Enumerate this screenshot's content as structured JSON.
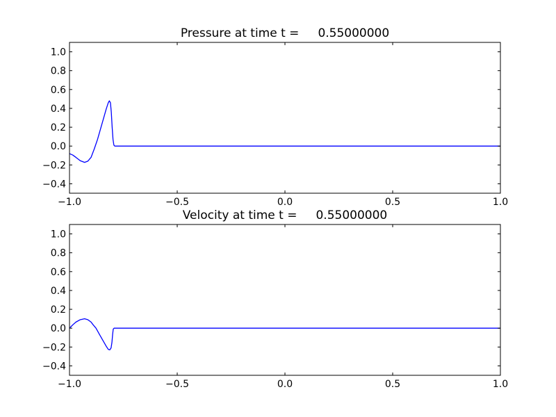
{
  "chart_data": [
    {
      "type": "line",
      "title": "Pressure at time t =     0.55000000",
      "xlabel": "",
      "ylabel": "",
      "xlim": [
        -1.0,
        1.0
      ],
      "ylim": [
        -0.5,
        1.1
      ],
      "xticks": [
        -1.0,
        -0.5,
        0.0,
        0.5,
        1.0
      ],
      "xtick_labels": [
        "−1.0",
        "−0.5",
        "0.0",
        "0.5",
        "1.0"
      ],
      "yticks": [
        -0.4,
        -0.2,
        0.0,
        0.2,
        0.4,
        0.6,
        0.8,
        1.0
      ],
      "ytick_labels": [
        "−0.4",
        "−0.2",
        "0.0",
        "0.2",
        "0.4",
        "0.6",
        "0.8",
        "1.0"
      ],
      "grid": false,
      "color": "#0000ff",
      "series": [
        {
          "name": "pressure",
          "x": [
            -1.0,
            -0.985,
            -0.97,
            -0.95,
            -0.93,
            -0.915,
            -0.9,
            -0.885,
            -0.87,
            -0.855,
            -0.84,
            -0.83,
            -0.82,
            -0.815,
            -0.81,
            -0.806,
            -0.802,
            -0.798,
            -0.794,
            -0.79,
            1.0
          ],
          "y": [
            -0.08,
            -0.095,
            -0.12,
            -0.155,
            -0.173,
            -0.16,
            -0.12,
            -0.03,
            0.07,
            0.19,
            0.31,
            0.39,
            0.46,
            0.48,
            0.46,
            0.36,
            0.2,
            0.07,
            0.01,
            0.0,
            0.0
          ]
        }
      ]
    },
    {
      "type": "line",
      "title": "Velocity at time t =     0.55000000",
      "xlabel": "",
      "ylabel": "",
      "xlim": [
        -1.0,
        1.0
      ],
      "ylim": [
        -0.5,
        1.1
      ],
      "xticks": [
        -1.0,
        -0.5,
        0.0,
        0.5,
        1.0
      ],
      "xtick_labels": [
        "−1.0",
        "−0.5",
        "0.0",
        "0.5",
        "1.0"
      ],
      "yticks": [
        -0.4,
        -0.2,
        0.0,
        0.2,
        0.4,
        0.6,
        0.8,
        1.0
      ],
      "ytick_labels": [
        "−0.4",
        "−0.2",
        "0.0",
        "0.2",
        "0.4",
        "0.6",
        "0.8",
        "1.0"
      ],
      "grid": false,
      "color": "#0000ff",
      "series": [
        {
          "name": "velocity",
          "x": [
            -1.0,
            -0.985,
            -0.97,
            -0.95,
            -0.93,
            -0.915,
            -0.9,
            -0.89,
            -0.877,
            -0.86,
            -0.845,
            -0.83,
            -0.82,
            -0.813,
            -0.807,
            -0.803,
            -0.8,
            -0.797,
            -0.793,
            1.0
          ],
          "y": [
            0.0,
            0.035,
            0.065,
            0.09,
            0.1,
            0.09,
            0.065,
            0.035,
            0.0,
            -0.07,
            -0.13,
            -0.19,
            -0.225,
            -0.23,
            -0.21,
            -0.15,
            -0.07,
            -0.01,
            0.0,
            0.0
          ]
        }
      ]
    }
  ]
}
